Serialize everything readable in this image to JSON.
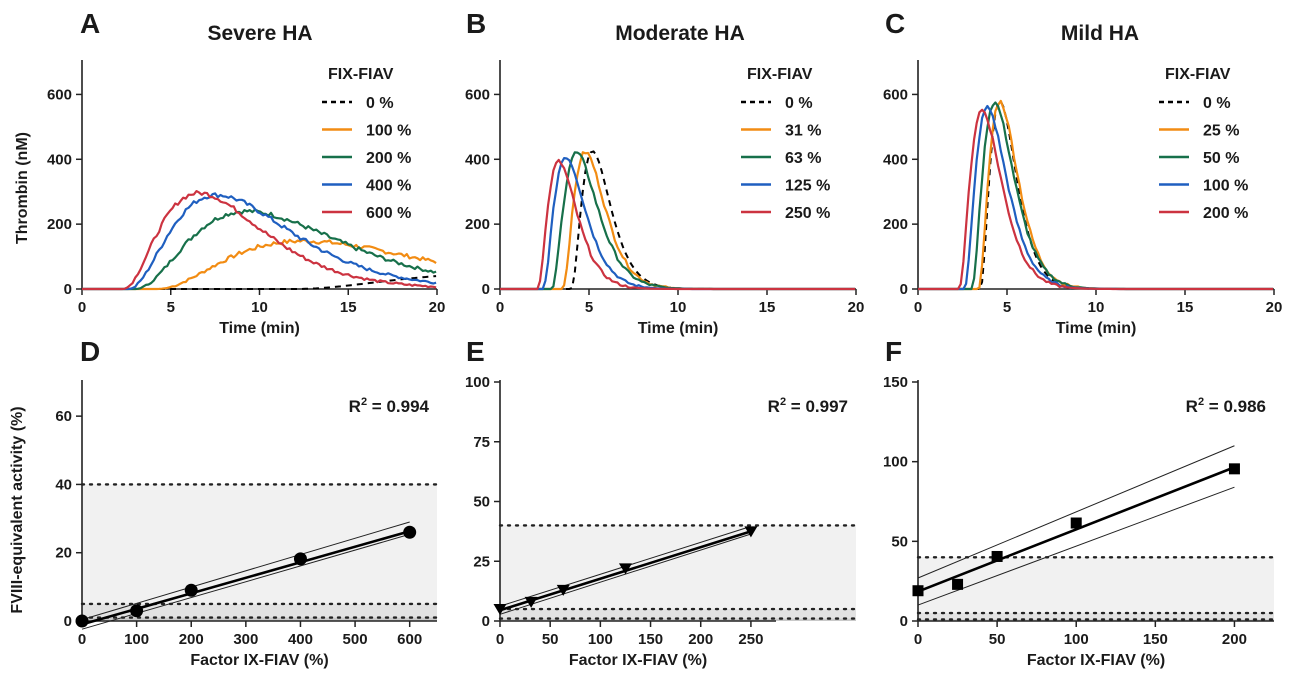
{
  "ylabel_top": "Thrombin (nM)",
  "ylabel_bottom": "FVIII-equivalent activity (%)",
  "chart_data": [
    {
      "type": "line",
      "panel": "A",
      "title": "Severe HA",
      "xlabel": "Time (min)",
      "xlim": [
        0,
        20
      ],
      "xticks": [
        0,
        5,
        10,
        15,
        20
      ],
      "ylim": [
        0,
        700
      ],
      "yticks": [
        0,
        200,
        400,
        600
      ],
      "legend_title": "FIX-FIAV",
      "legend_position": "top-right",
      "series": [
        {
          "name": "0 %",
          "color": "#000000",
          "dashed": true,
          "peak_time": 25,
          "peak_value": 50,
          "lag": 12
        },
        {
          "name": "100 %",
          "color": "#f28c13",
          "dashed": false,
          "peak_time": 12.5,
          "peak_value": 148,
          "lag": 4.2
        },
        {
          "name": "200 %",
          "color": "#17704a",
          "dashed": false,
          "peak_time": 9.3,
          "peak_value": 240,
          "lag": 3.0
        },
        {
          "name": "400 %",
          "color": "#1f5fc0",
          "dashed": false,
          "peak_time": 7.6,
          "peak_value": 290,
          "lag": 2.6
        },
        {
          "name": "600 %",
          "color": "#cc3340",
          "dashed": false,
          "peak_time": 6.6,
          "peak_value": 296,
          "lag": 2.3
        }
      ]
    },
    {
      "type": "line",
      "panel": "B",
      "title": "Moderate HA",
      "xlabel": "Time (min)",
      "xlim": [
        0,
        20
      ],
      "xticks": [
        0,
        5,
        10,
        15,
        20
      ],
      "ylim": [
        0,
        700
      ],
      "yticks": [
        0,
        200,
        400,
        600
      ],
      "legend_title": "FIX-FIAV",
      "legend_position": "top-right",
      "series": [
        {
          "name": "0 %",
          "color": "#000000",
          "dashed": true,
          "peak_time": 5.2,
          "peak_value": 425,
          "lag": 4.0
        },
        {
          "name": "31 %",
          "color": "#f28c13",
          "dashed": false,
          "peak_time": 4.8,
          "peak_value": 422,
          "lag": 3.5
        },
        {
          "name": "63 %",
          "color": "#17704a",
          "dashed": false,
          "peak_time": 4.3,
          "peak_value": 420,
          "lag": 2.9
        },
        {
          "name": "125 %",
          "color": "#1f5fc0",
          "dashed": false,
          "peak_time": 3.7,
          "peak_value": 408,
          "lag": 2.4
        },
        {
          "name": "250 %",
          "color": "#cc3340",
          "dashed": false,
          "peak_time": 3.3,
          "peak_value": 393,
          "lag": 2.1
        }
      ]
    },
    {
      "type": "line",
      "panel": "C",
      "title": "Mild HA",
      "xlabel": "Time (min)",
      "xlim": [
        0,
        20
      ],
      "xticks": [
        0,
        5,
        10,
        15,
        20
      ],
      "ylim": [
        0,
        700
      ],
      "yticks": [
        0,
        200,
        400,
        600
      ],
      "legend_title": "FIX-FIAV",
      "legend_position": "top-right",
      "series": [
        {
          "name": "0 %",
          "color": "#000000",
          "dashed": true,
          "peak_time": 4.6,
          "peak_value": 580,
          "lag": 3.5
        },
        {
          "name": "25 %",
          "color": "#f28c13",
          "dashed": false,
          "peak_time": 4.6,
          "peak_value": 578,
          "lag": 3.4
        },
        {
          "name": "50 %",
          "color": "#17704a",
          "dashed": false,
          "peak_time": 4.3,
          "peak_value": 575,
          "lag": 3.0
        },
        {
          "name": "100 %",
          "color": "#1f5fc0",
          "dashed": false,
          "peak_time": 3.9,
          "peak_value": 560,
          "lag": 2.6
        },
        {
          "name": "200 %",
          "color": "#cc3340",
          "dashed": false,
          "peak_time": 3.6,
          "peak_value": 552,
          "lag": 2.3
        }
      ]
    },
    {
      "type": "scatter",
      "panel": "D",
      "xlabel": "Factor IX-FIAV (%)",
      "xlim": [
        0,
        650
      ],
      "xticks": [
        0,
        100,
        200,
        300,
        400,
        500,
        600
      ],
      "ylim": [
        0,
        70
      ],
      "yticks": [
        0,
        20,
        40,
        60
      ],
      "annotation": "R",
      "annotation_exp": "2",
      "annotation_value": " = 0.994",
      "marker": "circle",
      "x": [
        0,
        100,
        200,
        400,
        600
      ],
      "y": [
        0,
        3,
        9,
        18.2,
        26
      ],
      "fit": {
        "intercept": -1.0,
        "slope": 0.0455
      },
      "ci_upper": [
        [
          0,
          0.4
        ],
        [
          600,
          29
        ]
      ],
      "ci_lower": [
        [
          0,
          -2.4
        ],
        [
          600,
          25.4
        ]
      ],
      "reference_lines": [
        1,
        5,
        40
      ],
      "shaded_bands": [
        [
          0,
          1
        ],
        [
          1,
          5
        ],
        [
          5,
          40
        ]
      ]
    },
    {
      "type": "scatter",
      "panel": "E",
      "xlabel": "Factor IX-FIAV (%)",
      "xlim": [
        0,
        275
      ],
      "xticks": [
        0,
        50,
        100,
        150,
        200,
        250
      ],
      "ylim": [
        0,
        100
      ],
      "yticks": [
        0,
        25,
        50,
        75,
        100
      ],
      "annotation": "R",
      "annotation_exp": "2",
      "annotation_value": " = 0.997",
      "marker": "triangle-down",
      "x": [
        0,
        31,
        63,
        125,
        250
      ],
      "y": [
        5,
        8,
        13,
        22,
        37.5
      ],
      "fit": {
        "intercept": 4.5,
        "slope": 0.132
      },
      "ci_upper": [
        [
          0,
          6.2
        ],
        [
          250,
          39.6
        ]
      ],
      "ci_lower": [
        [
          0,
          2.8
        ],
        [
          250,
          36.4
        ]
      ],
      "reference_lines": [
        1,
        5,
        40
      ],
      "shaded_bands": [
        [
          0,
          1
        ],
        [
          1,
          5
        ],
        [
          5,
          40
        ]
      ]
    },
    {
      "type": "scatter",
      "panel": "F",
      "xlabel": "Factor IX-FIAV (%)",
      "xlim": [
        0,
        225
      ],
      "xticks": [
        0,
        50,
        100,
        150,
        200
      ],
      "ylim": [
        0,
        150
      ],
      "yticks": [
        0,
        50,
        100,
        150
      ],
      "annotation": "R",
      "annotation_exp": "2",
      "annotation_value": " = 0.986",
      "marker": "square",
      "x": [
        0,
        25,
        50,
        100,
        200
      ],
      "y": [
        19,
        23,
        40.5,
        61.5,
        95.5
      ],
      "fit": {
        "intercept": 18.5,
        "slope": 0.39
      },
      "ci_upper": [
        [
          0,
          27
        ],
        [
          200,
          110
        ]
      ],
      "ci_lower": [
        [
          0,
          10
        ],
        [
          200,
          84
        ]
      ],
      "reference_lines": [
        1,
        5,
        40
      ],
      "shaded_bands": [
        [
          0,
          1
        ],
        [
          1,
          5
        ],
        [
          5,
          40
        ]
      ]
    }
  ]
}
